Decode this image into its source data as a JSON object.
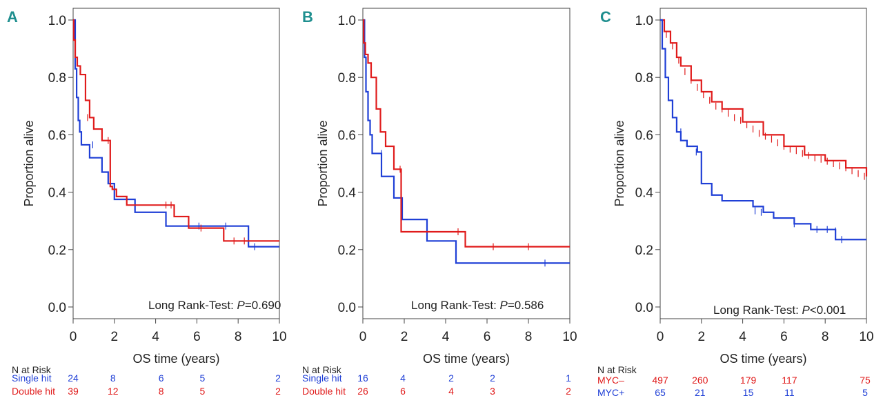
{
  "chart_data": [
    {
      "type": "line",
      "panel": "A",
      "xlabel": "OS time (years)",
      "ylabel": "Proportion alive",
      "xlim": [
        0,
        10
      ],
      "ylim": [
        0,
        1
      ],
      "xticks": [
        "0",
        "2",
        "4",
        "6",
        "8",
        "10"
      ],
      "yticks": [
        "0.0",
        "0.2",
        "0.4",
        "0.6",
        "0.8",
        "1.0"
      ],
      "pvalue": {
        "label": "Long Rank-Test: ",
        "italic": "P",
        "value": "=0.690"
      },
      "series": [
        {
          "name": "Single hit",
          "color": "#1f3fd6",
          "x": [
            0,
            0.1,
            0.17,
            0.25,
            0.32,
            0.4,
            0.8,
            1.4,
            1.7,
            2.0,
            3.0,
            4.5,
            8.5,
            10
          ],
          "y": [
            1.0,
            0.83,
            0.73,
            0.65,
            0.61,
            0.565,
            0.52,
            0.47,
            0.43,
            0.375,
            0.33,
            0.282,
            0.21,
            0.21
          ],
          "censor_x": [
            0.95,
            6.1,
            7.4,
            8.8
          ],
          "censor_y": [
            0.565,
            0.282,
            0.282,
            0.21
          ]
        },
        {
          "name": "Double hit",
          "color": "#e01b1b",
          "x": [
            0,
            0.03,
            0.1,
            0.2,
            0.35,
            0.6,
            0.8,
            1.0,
            1.4,
            1.8,
            1.9,
            2.1,
            2.6,
            4.9,
            5.6,
            7.3,
            10
          ],
          "y": [
            1.0,
            0.93,
            0.87,
            0.84,
            0.81,
            0.72,
            0.66,
            0.62,
            0.58,
            0.42,
            0.41,
            0.385,
            0.355,
            0.315,
            0.275,
            0.23,
            0.23
          ],
          "censor_x": [
            0.7,
            1.7,
            4.5,
            4.75,
            6.2,
            7.8,
            8.3
          ],
          "censor_y": [
            0.66,
            0.58,
            0.355,
            0.355,
            0.275,
            0.23,
            0.23
          ]
        }
      ],
      "risk_table": {
        "header": "N at Risk",
        "rows": [
          {
            "label": "Single hit",
            "color": "#1f3fd6",
            "values": [
              "24",
              "8",
              "6",
              "5",
              "2"
            ]
          },
          {
            "label": "Double hit",
            "color": "#e01b1b",
            "values": [
              "39",
              "12",
              "8",
              "5",
              "2"
            ]
          }
        ]
      }
    },
    {
      "type": "line",
      "panel": "B",
      "xlabel": "OS time (years)",
      "ylabel": "Proportion alive",
      "xlim": [
        0,
        10
      ],
      "ylim": [
        0,
        1
      ],
      "xticks": [
        "0",
        "2",
        "4",
        "6",
        "8",
        "10"
      ],
      "yticks": [
        "0.0",
        "0.2",
        "0.4",
        "0.6",
        "0.8",
        "1.0"
      ],
      "pvalue": {
        "label": "Long Rank-Test: ",
        "italic": "P",
        "value": "=0.586"
      },
      "series": [
        {
          "name": "Single hit",
          "color": "#1f3fd6",
          "x": [
            0,
            0.08,
            0.15,
            0.25,
            0.35,
            0.45,
            0.9,
            1.5,
            1.9,
            3.1,
            4.5,
            10
          ],
          "y": [
            1.0,
            0.87,
            0.75,
            0.65,
            0.6,
            0.535,
            0.455,
            0.38,
            0.305,
            0.23,
            0.153,
            0.153
          ],
          "censor_x": [
            0.9,
            8.8
          ],
          "censor_y": [
            0.535,
            0.153
          ]
        },
        {
          "name": "Double hit",
          "color": "#e01b1b",
          "x": [
            0,
            0.04,
            0.12,
            0.25,
            0.4,
            0.65,
            0.85,
            1.1,
            1.5,
            1.85,
            4.95,
            10
          ],
          "y": [
            1.0,
            0.92,
            0.88,
            0.85,
            0.8,
            0.69,
            0.61,
            0.56,
            0.48,
            0.262,
            0.21,
            0.21
          ],
          "censor_x": [
            1.8,
            4.6,
            6.3,
            8.0
          ],
          "censor_y": [
            0.48,
            0.262,
            0.21,
            0.21
          ]
        }
      ],
      "risk_table": {
        "header": "N at Risk",
        "rows": [
          {
            "label": "Single hit",
            "color": "#1f3fd6",
            "values": [
              "16",
              "4",
              "2",
              "2",
              "1"
            ]
          },
          {
            "label": "Double hit",
            "color": "#e01b1b",
            "values": [
              "26",
              "6",
              "4",
              "3",
              "2"
            ]
          }
        ]
      }
    },
    {
      "type": "line",
      "panel": "C",
      "xlabel": "OS time (years)",
      "ylabel": "Proportion alive",
      "xlim": [
        0,
        10
      ],
      "ylim": [
        0,
        1
      ],
      "xticks": [
        "0",
        "2",
        "4",
        "6",
        "8",
        "10"
      ],
      "yticks": [
        "0.0",
        "0.2",
        "0.4",
        "0.6",
        "0.8",
        "1.0"
      ],
      "pvalue": {
        "label": "Long Rank-Test: ",
        "italic": "P",
        "value": "<0.001"
      },
      "series": [
        {
          "name": "MYC–",
          "color": "#e01b1b",
          "x": [
            0,
            0.2,
            0.5,
            0.8,
            1.0,
            1.5,
            2.0,
            2.5,
            3.0,
            4.0,
            5.0,
            6.0,
            7.0,
            8.0,
            9.0,
            10
          ],
          "y": [
            1.0,
            0.96,
            0.92,
            0.87,
            0.84,
            0.79,
            0.75,
            0.715,
            0.69,
            0.645,
            0.6,
            0.56,
            0.53,
            0.51,
            0.485,
            0.455
          ],
          "censor_x": [
            0.1,
            0.3,
            0.6,
            0.9,
            1.2,
            1.5,
            1.8,
            2.1,
            2.4,
            2.7,
            3.0,
            3.3,
            3.6,
            3.9,
            4.2,
            4.5,
            4.8,
            5.1,
            5.4,
            5.7,
            6.0,
            6.3,
            6.6,
            6.9,
            7.2,
            7.5,
            7.8,
            8.1,
            8.4,
            8.7,
            9.0,
            9.3,
            9.6,
            9.9
          ],
          "censor_y": [
            0.98,
            0.95,
            0.91,
            0.86,
            0.82,
            0.79,
            0.765,
            0.74,
            0.72,
            0.7,
            0.69,
            0.675,
            0.66,
            0.65,
            0.635,
            0.62,
            0.605,
            0.595,
            0.585,
            0.572,
            0.56,
            0.55,
            0.545,
            0.535,
            0.528,
            0.52,
            0.515,
            0.508,
            0.5,
            0.492,
            0.485,
            0.475,
            0.465,
            0.455
          ]
        },
        {
          "name": "MYC+",
          "color": "#1f3fd6",
          "x": [
            0,
            0.1,
            0.25,
            0.4,
            0.6,
            0.8,
            1.0,
            1.3,
            1.8,
            2.0,
            2.5,
            3.0,
            4.5,
            5.0,
            5.5,
            6.5,
            7.3,
            8.5,
            10
          ],
          "y": [
            1.0,
            0.9,
            0.8,
            0.72,
            0.66,
            0.61,
            0.58,
            0.56,
            0.54,
            0.43,
            0.39,
            0.37,
            0.35,
            0.33,
            0.31,
            0.29,
            0.27,
            0.235,
            0.235
          ],
          "censor_x": [
            1.0,
            1.75,
            4.6,
            4.9,
            6.5,
            7.6,
            8.1,
            8.5,
            8.8
          ],
          "censor_y": [
            0.61,
            0.54,
            0.335,
            0.33,
            0.29,
            0.27,
            0.27,
            0.265,
            0.235
          ]
        }
      ],
      "risk_table": {
        "header": "N at Risk",
        "rows": [
          {
            "label": "MYC–",
            "color": "#e01b1b",
            "values": [
              "497",
              "260",
              "179",
              "117",
              "75"
            ]
          },
          {
            "label": "MYC+",
            "color": "#1f3fd6",
            "values": [
              "65",
              "21",
              "15",
              "11",
              "5"
            ]
          }
        ]
      }
    }
  ]
}
